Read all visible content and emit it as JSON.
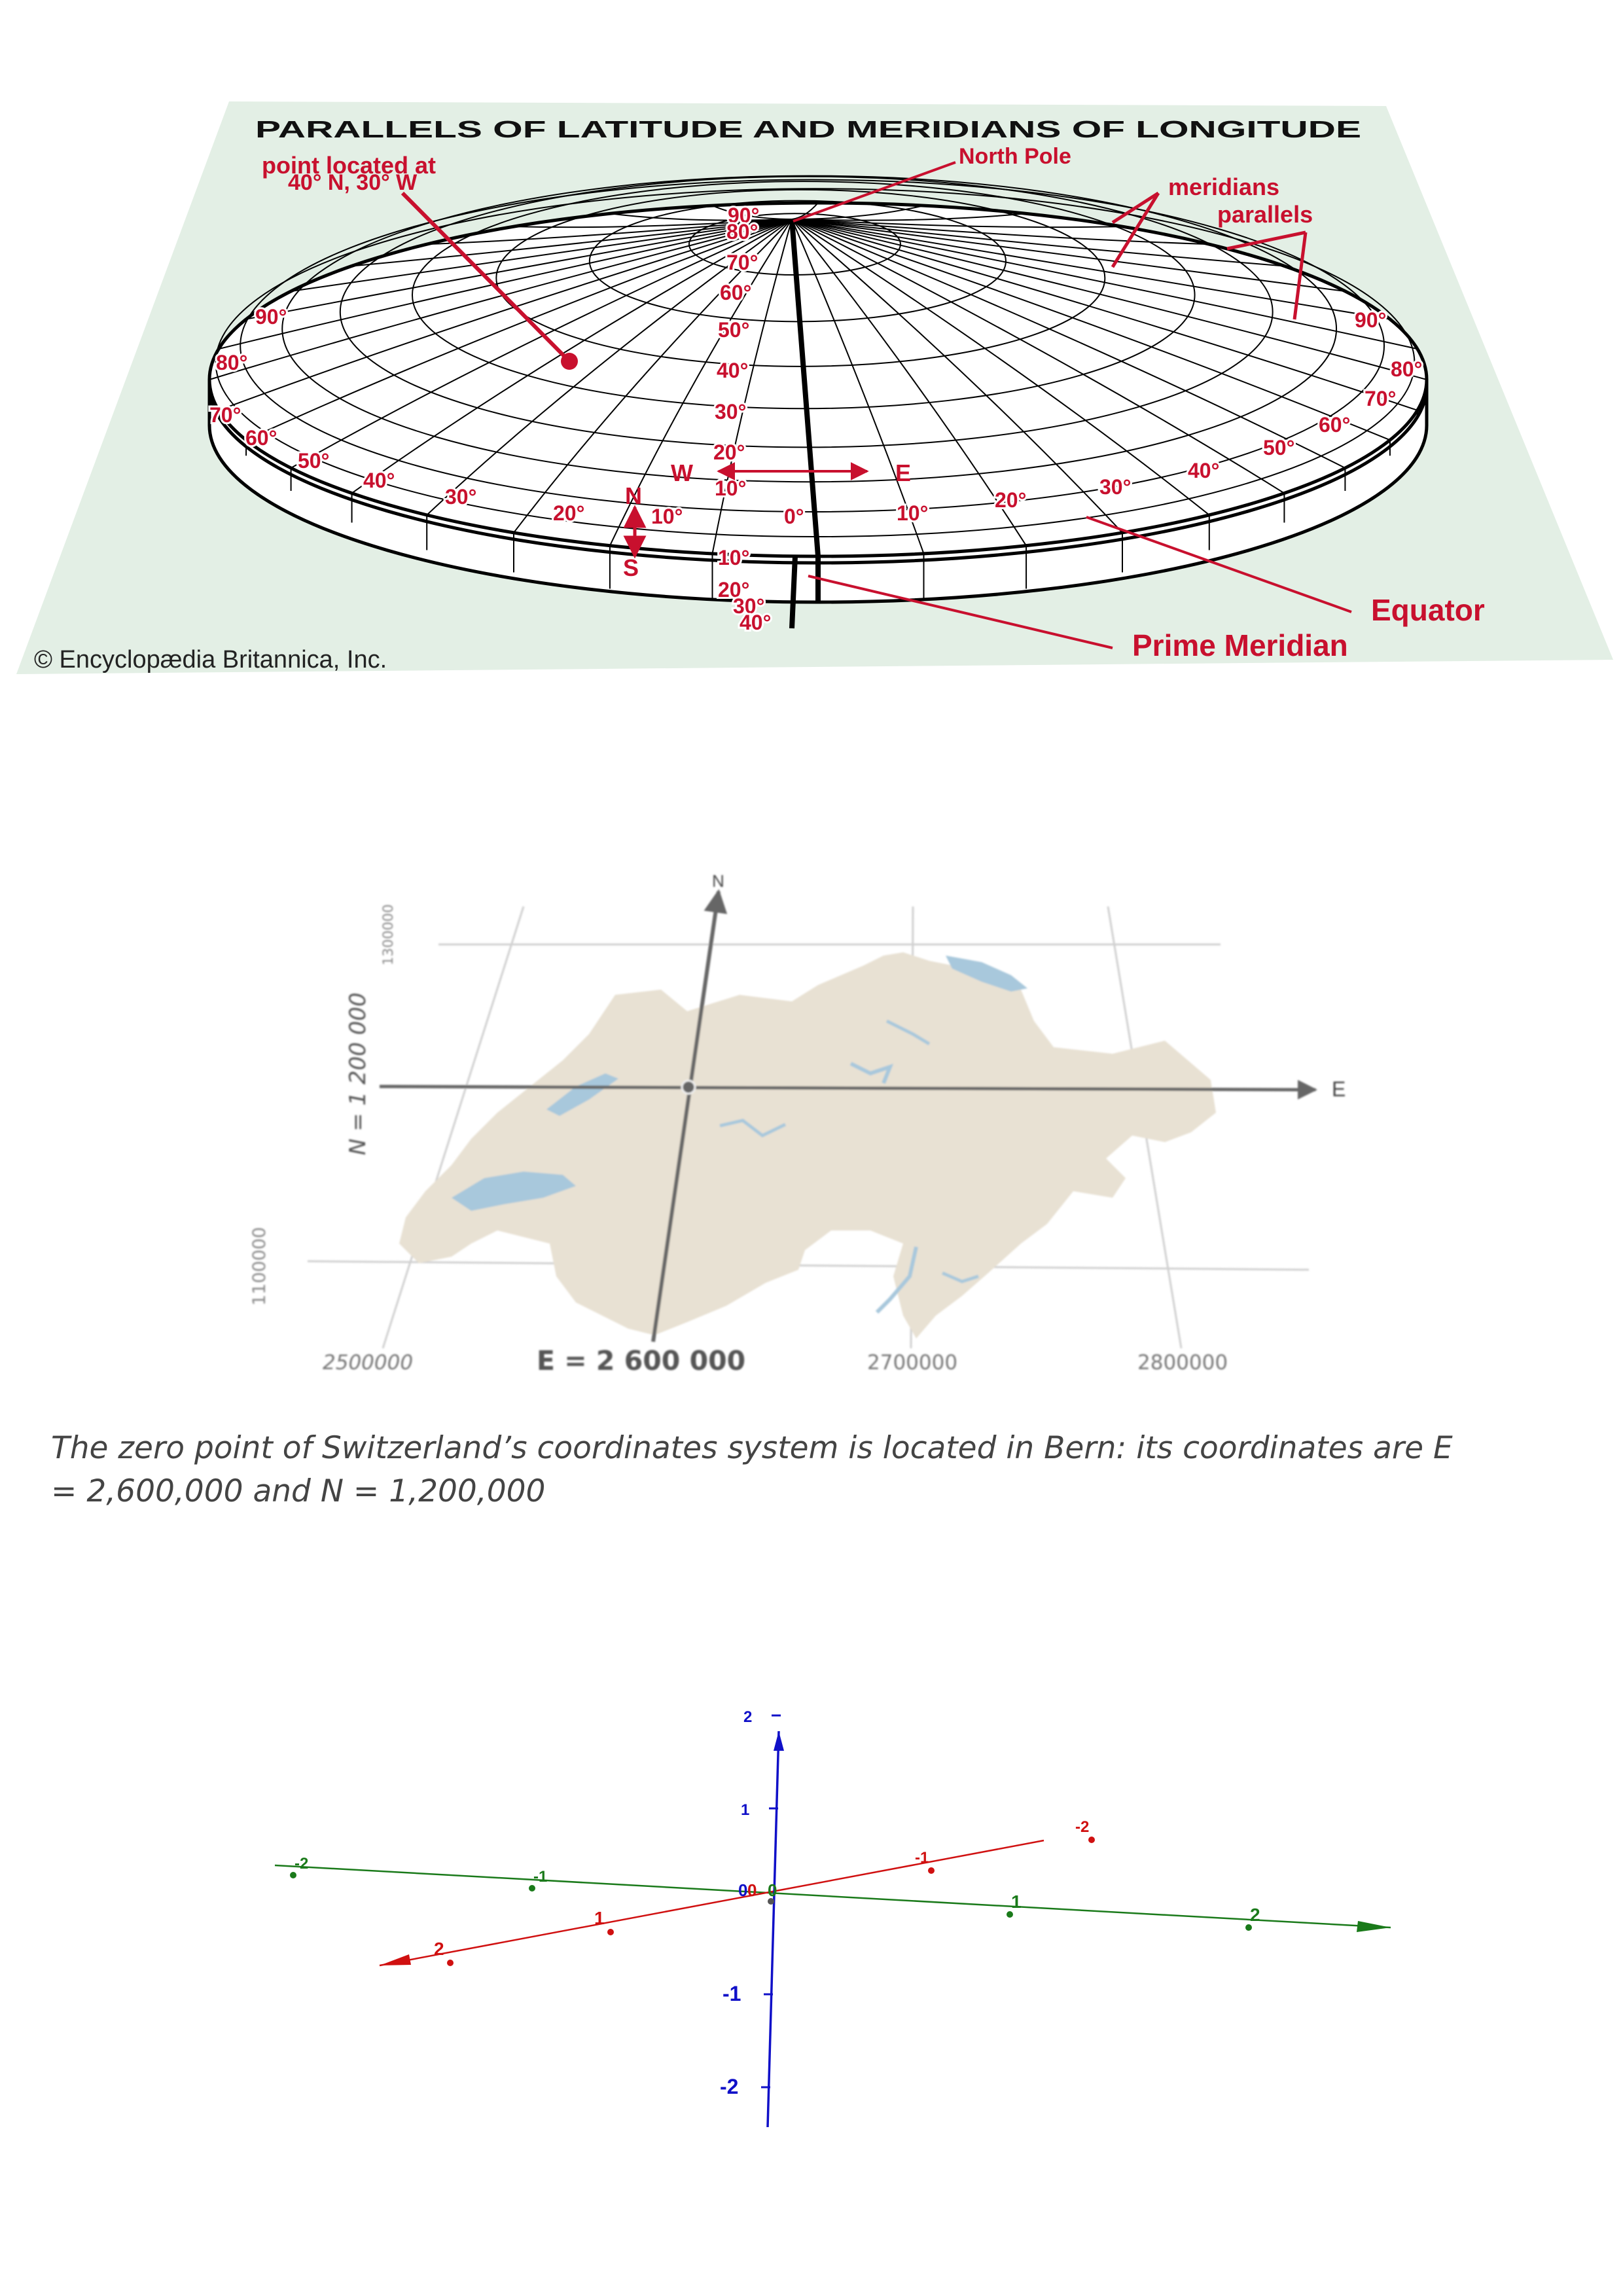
{
  "globe": {
    "title": "PARALLELS OF LATITUDE AND MERIDIANS OF LONGITUDE",
    "point_label": [
      "point located at",
      "40° N, 30° W"
    ],
    "north_pole": "North Pole",
    "meridians": "meridians",
    "parallels": "parallels",
    "equator": "Equator",
    "prime_meridian": "Prime Meridian",
    "copyright": "© Encyclopædia Britannica, Inc.",
    "compass": {
      "n": "N",
      "s": "S",
      "w": "W",
      "e": "E"
    },
    "center_lat_labels": [
      "90°",
      "80°",
      "70°",
      "60°",
      "50°",
      "40°",
      "30°",
      "20°",
      "10°"
    ],
    "south_lat_labels": [
      "10°",
      "20°",
      "30°",
      "40°"
    ],
    "zero_label": "0°",
    "west_lon_labels": [
      "10°",
      "20°",
      "30°",
      "40°",
      "50°",
      "60°",
      "70°",
      "80°",
      "90°"
    ],
    "east_lon_labels": [
      "10°",
      "20°",
      "30°",
      "40°",
      "50°",
      "60°",
      "70°",
      "80°",
      "90°"
    ],
    "colors": {
      "background": "#e3efe5",
      "accent": "#c8102e",
      "grid": "#000000"
    }
  },
  "swiss": {
    "north_axis": "N",
    "east_axis": "E",
    "n_label": "N = 1 200 000",
    "e_label": "E = 2 600 000",
    "y_ticks": [
      "1300000",
      "1100000"
    ],
    "x_ticks": [
      "2500000",
      "2700000",
      "2800000"
    ],
    "colors": {
      "land": "#e8e1d3",
      "water": "#a8c8dc",
      "axis": "#666666",
      "grid": "#d0d0d0"
    }
  },
  "caption": {
    "line1": "The zero point of Switzerland’s coordinates system is located in Bern: its coordinates are E",
    "line2": "= 2,600,000 and N = 1,200,000"
  },
  "axes3d": {
    "origin": [
      "0",
      "0",
      "0"
    ],
    "x_ticks": [
      "-2",
      "-1",
      "1",
      "2"
    ],
    "y_ticks": [
      "-2",
      "-1",
      "1",
      "2"
    ],
    "z_ticks": [
      "2",
      "1",
      "-1",
      "-2"
    ],
    "colors": {
      "x": "#d01010",
      "y": "#1a7a1a",
      "z": "#1010c8"
    }
  }
}
